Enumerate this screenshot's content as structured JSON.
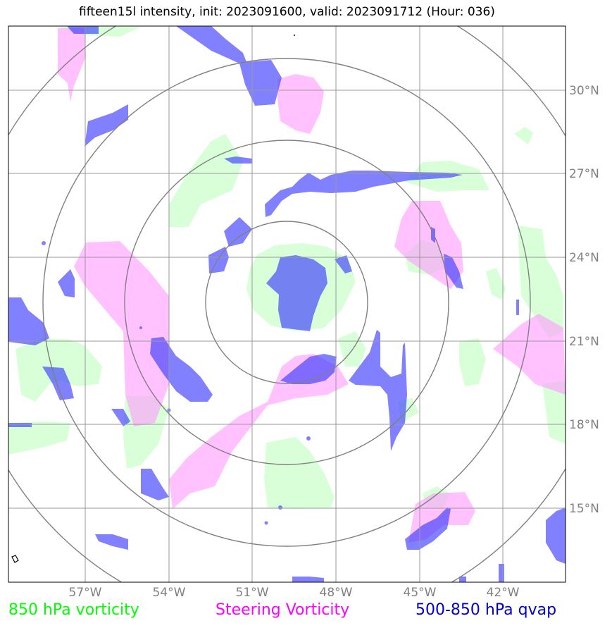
{
  "title": "fifteen15l intensity, init: 2023091600, valid: 2023091712 (Hour: 036)",
  "colors": {
    "vort850": "#ccffcc",
    "steering": "#ff99ff",
    "qvap": "#3333ff",
    "grid": "#999999",
    "rings": "#808080",
    "ticks": "#808080"
  },
  "map": {
    "lon_ticks": [
      "57°W",
      "54°W",
      "51°W",
      "48°W",
      "45°W",
      "42°W"
    ],
    "lat_ticks": [
      "30°N",
      "27°N",
      "24°N",
      "21°N",
      "18°N",
      "15°N"
    ],
    "range_rings": 4
  },
  "legend": {
    "vorticity_850": {
      "label": "850 hPa vorticity",
      "color": "#00ff00"
    },
    "steering": {
      "label": "Steering Vorticity",
      "color": "#ff00ff"
    },
    "qvap": {
      "label": "500-850 hPa qvap",
      "color": "#0000cc"
    }
  }
}
